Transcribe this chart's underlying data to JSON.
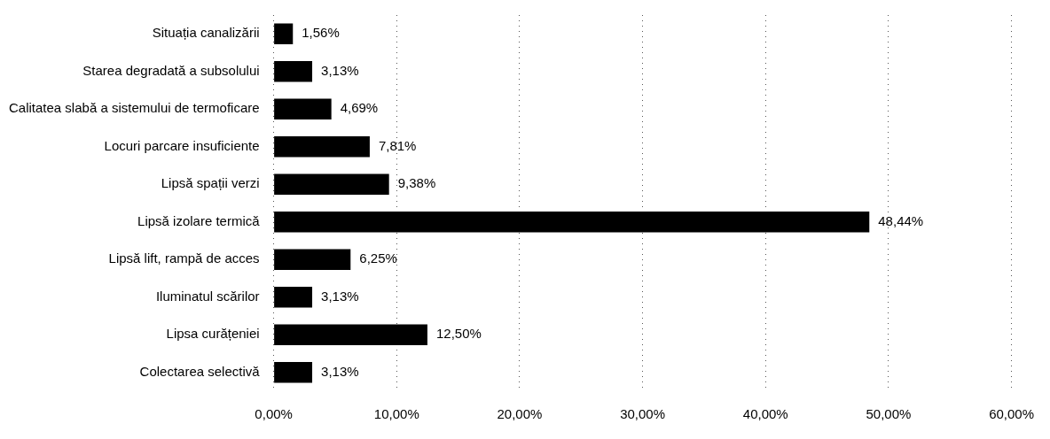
{
  "chart_data": {
    "type": "bar",
    "orientation": "horizontal",
    "categories": [
      "Situația canalizării",
      "Starea degradată a subsolului",
      "Calitatea slabă a sistemului de termoficare",
      "Locuri parcare insuficiente",
      "Lipsă spații verzi",
      "Lipsă izolare termică",
      "Lipsă lift, rampă de acces",
      "Iluminatul scărilor",
      "Lipsa curățeniei",
      "Colectarea selectivă"
    ],
    "values": [
      1.56,
      3.13,
      4.69,
      7.81,
      9.38,
      48.44,
      6.25,
      3.13,
      12.5,
      3.13
    ],
    "value_labels": [
      "1,56%",
      "3,13%",
      "4,69%",
      "7,81%",
      "9,38%",
      "48,44%",
      "6,25%",
      "3,13%",
      "12,50%",
      "3,13%"
    ],
    "color": "#000000",
    "xlim": [
      0,
      60
    ],
    "xticks": [
      {
        "value": 0,
        "label": "0,00%"
      },
      {
        "value": 10,
        "label": "10,00%"
      },
      {
        "value": 20,
        "label": "20,00%"
      },
      {
        "value": 30,
        "label": "30,00%"
      },
      {
        "value": 40,
        "label": "40,00%"
      },
      {
        "value": 50,
        "label": "50,00%"
      },
      {
        "value": 60,
        "label": "60,00%"
      }
    ],
    "grid": "x",
    "legend": false
  }
}
